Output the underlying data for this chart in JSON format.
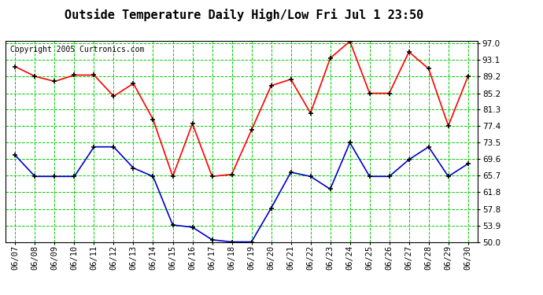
{
  "title": "Outside Temperature Daily High/Low Fri Jul 1 23:50",
  "copyright": "Copyright 2005 Curtronics.com",
  "x_labels": [
    "06/07",
    "06/08",
    "06/09",
    "06/10",
    "06/11",
    "06/12",
    "06/13",
    "06/14",
    "06/15",
    "06/16",
    "06/17",
    "06/18",
    "06/19",
    "06/20",
    "06/21",
    "06/22",
    "06/23",
    "06/24",
    "06/25",
    "06/26",
    "06/27",
    "06/28",
    "06/29",
    "06/30"
  ],
  "high_values": [
    91.5,
    89.2,
    88.0,
    89.5,
    89.5,
    84.5,
    87.5,
    79.0,
    65.5,
    78.0,
    65.5,
    66.0,
    76.5,
    87.0,
    88.5,
    80.5,
    93.5,
    97.5,
    85.2,
    85.2,
    95.0,
    91.0,
    77.5,
    89.2
  ],
  "low_values": [
    70.5,
    65.5,
    65.5,
    65.5,
    72.5,
    72.5,
    67.5,
    65.5,
    54.0,
    53.5,
    50.5,
    50.0,
    50.0,
    58.0,
    66.5,
    65.5,
    62.5,
    73.5,
    65.5,
    65.5,
    69.5,
    72.5,
    65.5,
    68.5
  ],
  "high_color": "#ff0000",
  "low_color": "#0000cc",
  "marker_color": "#000000",
  "grid_color": "#00cc00",
  "bg_color": "#ffffff",
  "plot_bg_color": "#ffffff",
  "title_color": "#000000",
  "copyright_color": "#000000",
  "ylim": [
    50.0,
    97.5
  ],
  "yticks": [
    50.0,
    53.9,
    57.8,
    61.8,
    65.7,
    69.6,
    73.5,
    77.4,
    81.3,
    85.2,
    89.2,
    93.1,
    97.0
  ],
  "title_fontsize": 11,
  "tick_fontsize": 7.5,
  "copyright_fontsize": 7,
  "line_width": 1.2,
  "marker_size": 5
}
